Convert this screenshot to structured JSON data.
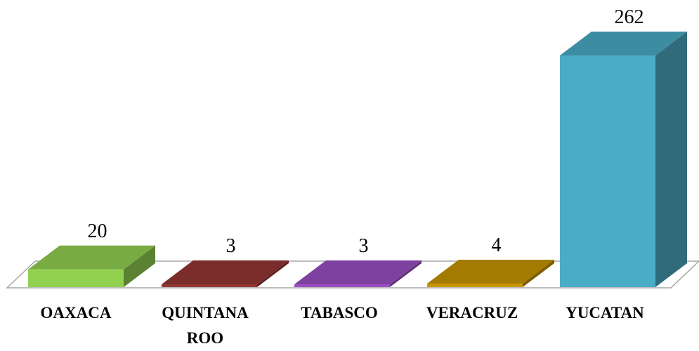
{
  "chart_data": {
    "type": "bar",
    "style": "3d",
    "categories": [
      "OAXACA",
      "QUINTANA ROO",
      "TABASCO",
      "VERACRUZ",
      "YUCATAN"
    ],
    "values": [
      20,
      3,
      3,
      4,
      262
    ],
    "data_labels": [
      "20",
      "3",
      "3",
      "4",
      "262"
    ],
    "colors": [
      "#92d050",
      "#953735",
      "#9b4fc3",
      "#c79600",
      "#4bacc6"
    ],
    "title": "",
    "xlabel": "",
    "ylabel": "",
    "ylim": [
      0,
      262
    ],
    "grid": false,
    "legend": "none"
  }
}
